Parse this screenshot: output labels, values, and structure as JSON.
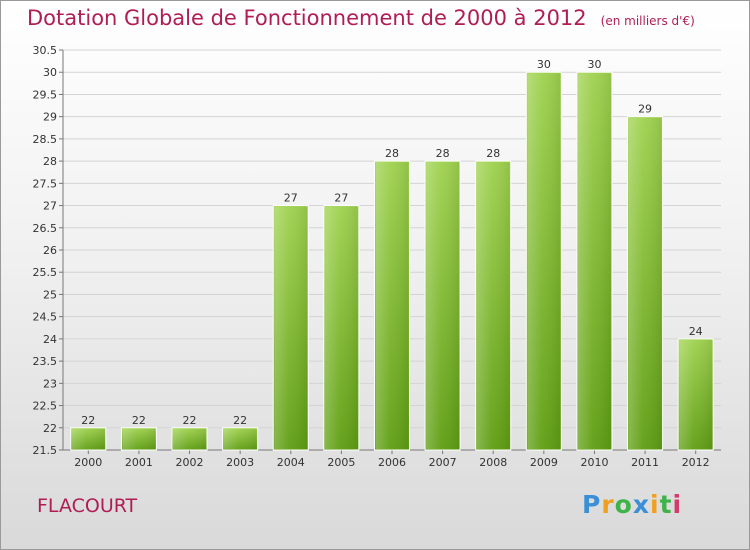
{
  "title": "Dotation Globale de Fonctionnement de 2000 à 2012",
  "unit": "(en milliers d'€)",
  "commune": "FLACOURT",
  "logo": {
    "letters": [
      "P",
      "r",
      "o",
      "x",
      "i",
      "t",
      "i"
    ],
    "colors": [
      "#3a8fd6",
      "#f0a020",
      "#3fb24a",
      "#3a8fd6",
      "#f0a020",
      "#3fb24a",
      "#d63a6a"
    ]
  },
  "chart_data": {
    "type": "bar",
    "title": "Dotation Globale de Fonctionnement de 2000 à 2012",
    "subtitle": "(en milliers d'€)",
    "categories": [
      "2000",
      "2001",
      "2002",
      "2003",
      "2004",
      "2005",
      "2006",
      "2007",
      "2008",
      "2009",
      "2010",
      "2011",
      "2012"
    ],
    "values": [
      22,
      22,
      22,
      22,
      27,
      27,
      28,
      28,
      28,
      30,
      30,
      29,
      24
    ],
    "ylim": [
      21.5,
      30.5
    ],
    "yticks": [
      "21.5",
      "22",
      "22.5",
      "23",
      "23.5",
      "24",
      "24.5",
      "25",
      "25.5",
      "26",
      "26.5",
      "27",
      "27.5",
      "28",
      "28.5",
      "29",
      "29.5",
      "30",
      "30.5"
    ],
    "grid": true,
    "bar_color": "#8ac63f"
  }
}
